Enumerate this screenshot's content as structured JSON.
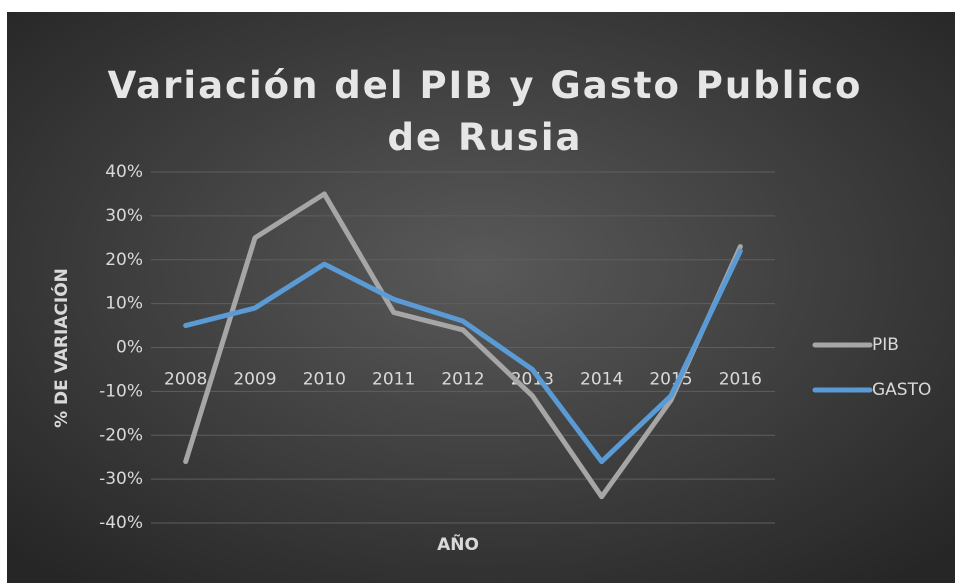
{
  "chart_data": {
    "type": "line",
    "title": "Variación del PIB y Gasto Publico de Rusia",
    "x_label": "AÑO",
    "y_label": "% DE VARIACIÓN",
    "categories": [
      "2008",
      "2009",
      "2010",
      "2011",
      "2012",
      "2013",
      "2014",
      "2015",
      "2016"
    ],
    "series": [
      {
        "name": "PIB",
        "color": "#a6a6a6",
        "values": [
          -26,
          25,
          35,
          8,
          4,
          -11,
          -34,
          -12,
          23
        ]
      },
      {
        "name": "GASTO",
        "color": "#5b9bd5",
        "values": [
          5,
          9,
          19,
          11,
          6,
          -5,
          -26,
          -11,
          22
        ]
      }
    ],
    "ylim": [
      -40,
      40
    ],
    "yticks": [
      {
        "value": -40,
        "label": "-40%"
      },
      {
        "value": -30,
        "label": "-30%"
      },
      {
        "value": -20,
        "label": "-20%"
      },
      {
        "value": -10,
        "label": "-10%"
      },
      {
        "value": 0,
        "label": "0%"
      },
      {
        "value": 10,
        "label": "10%"
      },
      {
        "value": 20,
        "label": "20%"
      },
      {
        "value": 30,
        "label": "30%"
      },
      {
        "value": 40,
        "label": "40%"
      }
    ],
    "grid": true,
    "legend": "right"
  }
}
